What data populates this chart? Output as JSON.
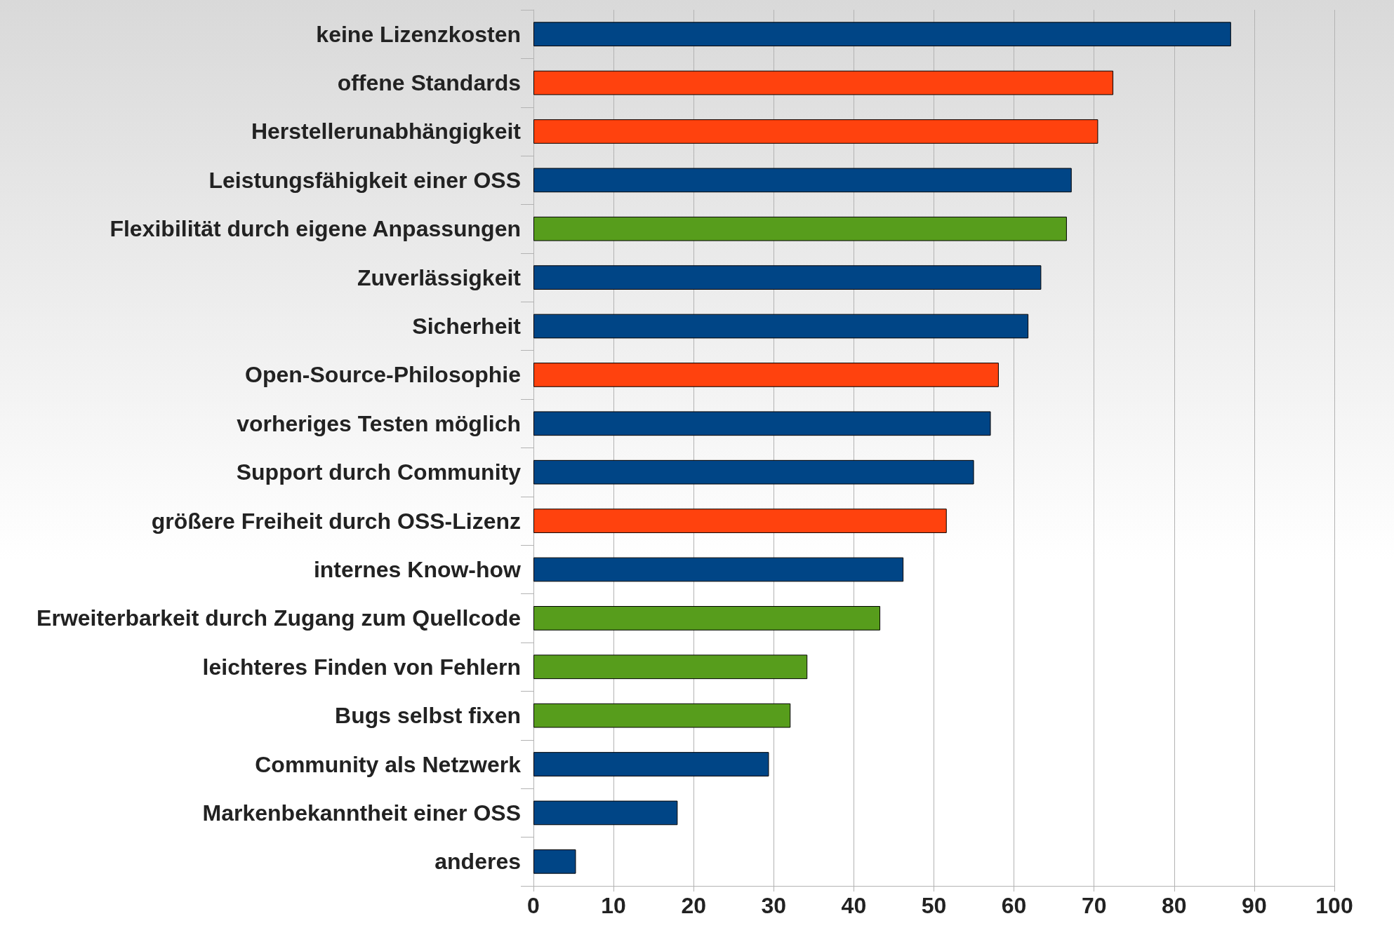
{
  "chart_data": {
    "type": "bar",
    "orientation": "horizontal",
    "categories": [
      "keine Lizenzkosten",
      "offene Standards",
      "Herstellerunabhängigkeit",
      "Leistungsfähigkeit einer OSS",
      "Flexibilität durch eigene Anpassungen",
      "Zuverlässigkeit",
      "Sicherheit",
      "Open-Source-Philosophie",
      "vorheriges Testen möglich",
      "Support durch Community",
      "größere Freiheit durch OSS-Lizenz",
      "internes Know-how",
      "Erweiterbarkeit durch Zugang zum Quellcode",
      "leichteres Finden von Fehlern",
      "Bugs selbst fixen",
      "Community als Netzwerk",
      "Markenbekanntheit einer OSS",
      "anderes"
    ],
    "values": [
      87.1,
      72.4,
      70.5,
      67.2,
      66.6,
      63.4,
      61.8,
      58.1,
      57.1,
      55.0,
      51.6,
      46.2,
      43.3,
      34.2,
      32.1,
      29.4,
      18.0,
      5.3
    ],
    "colors": [
      "#004586",
      "#ff420e",
      "#ff420e",
      "#004586",
      "#579d1c",
      "#004586",
      "#004586",
      "#ff420e",
      "#004586",
      "#004586",
      "#ff420e",
      "#004586",
      "#579d1c",
      "#579d1c",
      "#579d1c",
      "#004586",
      "#004586",
      "#004586"
    ],
    "xlim": [
      0,
      100
    ],
    "xticks": [
      0,
      10,
      20,
      30,
      40,
      50,
      60,
      70,
      80,
      90,
      100
    ],
    "grid": "x"
  }
}
